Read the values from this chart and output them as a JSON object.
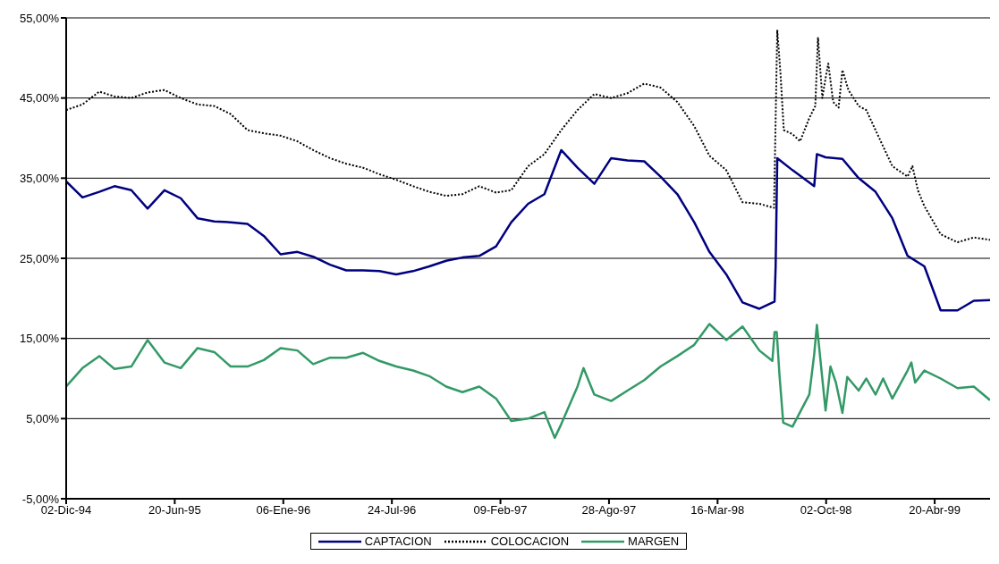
{
  "chart_data": {
    "type": "line",
    "xlim": [
      "1994-12-02",
      "1999-07-31"
    ],
    "xticks": [
      {
        "value": "1994-12-02",
        "label": "02-Dic-94"
      },
      {
        "value": "1995-06-20",
        "label": "20-Jun-95"
      },
      {
        "value": "1996-01-06",
        "label": "06-Ene-96"
      },
      {
        "value": "1996-07-24",
        "label": "24-Jul-96"
      },
      {
        "value": "1997-02-09",
        "label": "09-Feb-97"
      },
      {
        "value": "1997-08-28",
        "label": "28-Ago-97"
      },
      {
        "value": "1998-03-16",
        "label": "16-Mar-98"
      },
      {
        "value": "1998-10-02",
        "label": "02-Oct-98"
      },
      {
        "value": "1999-04-20",
        "label": "20-Abr-99"
      }
    ],
    "ylim": [
      -5,
      55
    ],
    "yticks": [
      {
        "value": -5,
        "label": "-5,00%"
      },
      {
        "value": 5,
        "label": "5,00%"
      },
      {
        "value": 15,
        "label": "15,00%"
      },
      {
        "value": 25,
        "label": "25,00%"
      },
      {
        "value": 35,
        "label": "35,00%"
      },
      {
        "value": 45,
        "label": "45,00%"
      },
      {
        "value": 55,
        "label": "55,00%"
      }
    ],
    "grid": "y",
    "legend": "bottom",
    "marker": "none",
    "series": [
      {
        "name": "CAPTACION",
        "color": "#000080",
        "line_style": "solid",
        "x": [
          "1994-12-02",
          "1995-01-01",
          "1995-02-01",
          "1995-03-01",
          "1995-04-01",
          "1995-05-01",
          "1995-06-01",
          "1995-07-01",
          "1995-08-01",
          "1995-09-01",
          "1995-10-01",
          "1995-11-01",
          "1995-12-01",
          "1996-01-01",
          "1996-02-01",
          "1996-03-01",
          "1996-04-01",
          "1996-05-01",
          "1996-06-01",
          "1996-07-01",
          "1996-08-01",
          "1996-09-01",
          "1996-10-01",
          "1996-11-01",
          "1996-12-01",
          "1997-01-01",
          "1997-02-01",
          "1997-03-01",
          "1997-04-01",
          "1997-05-01",
          "1997-06-01",
          "1997-07-01",
          "1997-08-01",
          "1997-09-01",
          "1997-10-01",
          "1997-11-01",
          "1997-12-01",
          "1998-01-01",
          "1998-02-01",
          "1998-03-01",
          "1998-04-01",
          "1998-05-01",
          "1998-06-01",
          "1998-06-29",
          "1998-07-01",
          "1998-07-04",
          "1998-08-01",
          "1998-09-10",
          "1998-09-15",
          "1998-10-01",
          "1998-11-01",
          "1998-12-01",
          "1999-01-01",
          "1999-02-01",
          "1999-03-01",
          "1999-04-01",
          "1999-05-01",
          "1999-06-01",
          "1999-07-01",
          "1999-07-31"
        ],
        "values": [
          34.6,
          32.6,
          33.3,
          34,
          33.5,
          31.2,
          33.5,
          32.5,
          30,
          29.6,
          29.5,
          29.3,
          27.8,
          25.5,
          25.8,
          25.2,
          24.2,
          23.5,
          23.5,
          23.4,
          23,
          23.4,
          24,
          24.7,
          25.1,
          25.3,
          26.5,
          29.5,
          31.8,
          33,
          38.5,
          36.3,
          34.3,
          37.5,
          37.2,
          37.1,
          35.2,
          33,
          29.5,
          25.8,
          23,
          19.5,
          18.7,
          19.6,
          24,
          37.5,
          36,
          34,
          38,
          37.6,
          37.4,
          35,
          33.3,
          30,
          25.3,
          24,
          18.5,
          18.5,
          19.7,
          19.8
        ]
      },
      {
        "name": "COLOCACION",
        "color": "#000000",
        "line_style": "dotted",
        "x": [
          "1994-12-02",
          "1995-01-01",
          "1995-02-01",
          "1995-03-01",
          "1995-04-01",
          "1995-05-01",
          "1995-06-01",
          "1995-07-01",
          "1995-08-01",
          "1995-09-01",
          "1995-10-01",
          "1995-11-01",
          "1995-12-01",
          "1996-01-01",
          "1996-02-01",
          "1996-03-01",
          "1996-04-01",
          "1996-05-01",
          "1996-06-01",
          "1996-07-01",
          "1996-08-01",
          "1996-09-01",
          "1996-10-01",
          "1996-11-01",
          "1996-12-01",
          "1997-01-01",
          "1997-02-01",
          "1997-03-01",
          "1997-04-01",
          "1997-05-01",
          "1997-06-01",
          "1997-07-01",
          "1997-08-01",
          "1997-09-01",
          "1997-10-01",
          "1997-11-01",
          "1997-12-01",
          "1998-01-01",
          "1998-02-01",
          "1998-03-01",
          "1998-04-01",
          "1998-05-01",
          "1998-06-01",
          "1998-06-28",
          "1998-07-04",
          "1998-07-10",
          "1998-07-16",
          "1998-08-01",
          "1998-08-15",
          "1998-09-01",
          "1998-09-12",
          "1998-09-17",
          "1998-09-25",
          "1998-10-01",
          "1998-10-06",
          "1998-10-15",
          "1998-10-25",
          "1998-11-01",
          "1998-11-12",
          "1998-12-01",
          "1998-12-15",
          "1999-01-01",
          "1999-02-01",
          "1999-03-01",
          "1999-03-10",
          "1999-03-20",
          "1999-04-01",
          "1999-05-01",
          "1999-06-01",
          "1999-07-01",
          "1999-07-31"
        ],
        "values": [
          43.5,
          44.2,
          45.8,
          45.2,
          45,
          45.7,
          46,
          45,
          44.2,
          44,
          43,
          41,
          40.6,
          40.3,
          39.6,
          38.5,
          37.5,
          36.8,
          36.3,
          35.5,
          34.8,
          34,
          33.3,
          32.8,
          33,
          34,
          33.2,
          33.5,
          36.5,
          38,
          41,
          43.5,
          45.5,
          45,
          45.6,
          46.8,
          46.3,
          44.5,
          41.5,
          37.8,
          36,
          32,
          31.8,
          31.3,
          53.5,
          48,
          41,
          40.5,
          39.6,
          42.5,
          44,
          52.5,
          45,
          47.5,
          49.3,
          44.5,
          43.8,
          48.5,
          46,
          44,
          43.5,
          41,
          36.5,
          35.2,
          36.5,
          33.5,
          31.5,
          28,
          27,
          27.6,
          27.3
        ]
      },
      {
        "name": "MARGEN",
        "color": "#339966",
        "line_style": "solid",
        "x": [
          "1994-12-02",
          "1995-01-01",
          "1995-02-01",
          "1995-03-01",
          "1995-04-01",
          "1995-05-01",
          "1995-06-01",
          "1995-07-01",
          "1995-08-01",
          "1995-09-01",
          "1995-10-01",
          "1995-11-01",
          "1995-12-01",
          "1996-01-01",
          "1996-02-01",
          "1996-03-01",
          "1996-04-01",
          "1996-05-01",
          "1996-06-01",
          "1996-07-01",
          "1996-08-01",
          "1996-09-01",
          "1996-10-01",
          "1996-11-01",
          "1996-12-01",
          "1997-01-01",
          "1997-02-01",
          "1997-03-01",
          "1997-04-01",
          "1997-05-01",
          "1997-05-20",
          "1997-06-01",
          "1997-07-01",
          "1997-07-12",
          "1997-08-01",
          "1997-09-01",
          "1997-10-01",
          "1997-11-01",
          "1997-12-01",
          "1998-01-01",
          "1998-02-01",
          "1998-03-01",
          "1998-04-01",
          "1998-05-01",
          "1998-06-01",
          "1998-06-25",
          "1998-06-29",
          "1998-07-03",
          "1998-07-08",
          "1998-07-15",
          "1998-08-01",
          "1998-09-01",
          "1998-09-10",
          "1998-09-15",
          "1998-09-22",
          "1998-10-01",
          "1998-10-10",
          "1998-10-20",
          "1998-11-01",
          "1998-11-10",
          "1998-12-01",
          "1998-12-15",
          "1999-01-01",
          "1999-01-15",
          "1999-02-01",
          "1999-03-01",
          "1999-03-08",
          "1999-03-15",
          "1999-04-01",
          "1999-05-01",
          "1999-06-01",
          "1999-07-01",
          "1999-07-31"
        ],
        "values": [
          9,
          11.3,
          12.8,
          11.2,
          11.5,
          14.8,
          12,
          11.3,
          13.8,
          13.3,
          11.5,
          11.5,
          12.3,
          13.8,
          13.5,
          11.8,
          12.6,
          12.6,
          13.2,
          12.2,
          11.5,
          11,
          10.3,
          9,
          8.3,
          9,
          7.5,
          4.7,
          5,
          5.8,
          2.6,
          4.3,
          9,
          11.3,
          8,
          7.2,
          8.5,
          9.8,
          11.5,
          12.8,
          14.2,
          16.8,
          14.8,
          16.5,
          13.5,
          12.2,
          15.8,
          15.8,
          10.5,
          4.5,
          4,
          8,
          13,
          16.7,
          12,
          6,
          11.5,
          9.5,
          5.7,
          10.2,
          8.5,
          10,
          8,
          10,
          7.5,
          11,
          12,
          9.5,
          11,
          10,
          8.8,
          9,
          7.3
        ]
      }
    ]
  }
}
